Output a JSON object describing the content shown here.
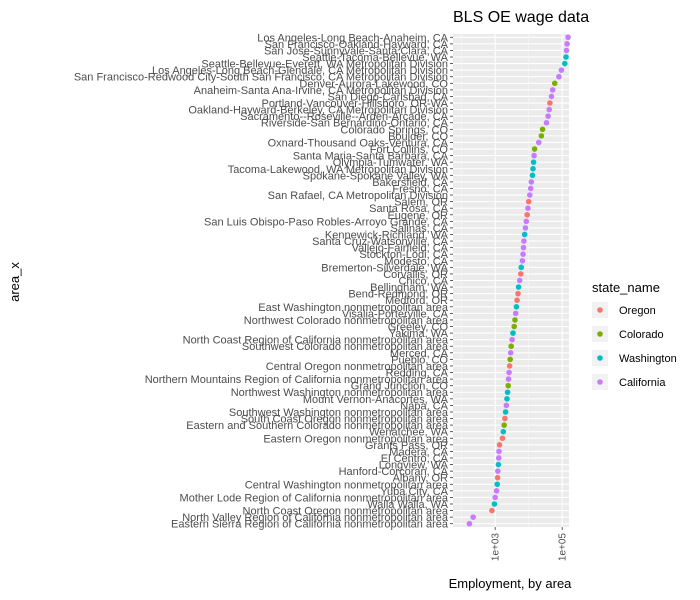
{
  "chart_data": {
    "type": "scatter",
    "title": "BLS OE wage data",
    "xlabel": "Employment, by area",
    "ylabel": "area_x",
    "x_scale": "log10",
    "xlim": [
      55,
      160000
    ],
    "x_ticks": [
      1000,
      100000
    ],
    "x_tick_labels": [
      "1e+03",
      "1e+05"
    ],
    "grid": true,
    "legend": {
      "title": "state_name",
      "position": "right",
      "entries": [
        {
          "name": "Oregon",
          "color": "#F8766D"
        },
        {
          "name": "Colorado",
          "color": "#7CAE00"
        },
        {
          "name": "Washington",
          "color": "#00BFC4"
        },
        {
          "name": "California",
          "color": "#C77CFF"
        }
      ]
    },
    "points": [
      {
        "area": "Los Angeles-Long Beach-Anaheim, CA",
        "state": "California",
        "x": 150000
      },
      {
        "area": "San Francisco-Oakland-Hayward, CA",
        "state": "California",
        "x": 140000
      },
      {
        "area": "San Jose-Sunnyvale-Santa Clara, CA",
        "state": "California",
        "x": 135000
      },
      {
        "area": "Seattle-Tacoma-Bellevue, WA",
        "state": "Washington",
        "x": 130000
      },
      {
        "area": "Seattle-Bellevue-Everett, WA Metropolitan Division",
        "state": "Washington",
        "x": 120000
      },
      {
        "area": "Los Angeles-Long Beach-Glendale, CA Metropolitan Division",
        "state": "California",
        "x": 95000
      },
      {
        "area": "San Francisco-Redwood City-South San Francisco, CA Metropolitan Division",
        "state": "California",
        "x": 80000
      },
      {
        "area": "Denver-Aurora-Lakewood, CO",
        "state": "Colorado",
        "x": 60000
      },
      {
        "area": "Anaheim-Santa Ana-Irvine, CA Metropolitan Division",
        "state": "California",
        "x": 52000
      },
      {
        "area": "San Diego-Carlsbad, CA",
        "state": "California",
        "x": 48000
      },
      {
        "area": "Portland-Vancouver-Hillsboro, OR-WA",
        "state": "Oregon",
        "x": 43000
      },
      {
        "area": "Oakland-Hayward-Berkeley, CA Metropolitan Division",
        "state": "California",
        "x": 41000
      },
      {
        "area": "Sacramento--Roseville--Arden-Arcade, CA",
        "state": "California",
        "x": 38000
      },
      {
        "area": "Riverside-San Bernardino-Ontario, CA",
        "state": "California",
        "x": 34000
      },
      {
        "area": "Colorado Springs, CO",
        "state": "Colorado",
        "x": 26000
      },
      {
        "area": "Boulder, CO",
        "state": "Colorado",
        "x": 24000
      },
      {
        "area": "Oxnard-Thousand Oaks-Ventura, CA",
        "state": "California",
        "x": 20000
      },
      {
        "area": "Fort Collins, CO",
        "state": "Colorado",
        "x": 15000
      },
      {
        "area": "Santa Maria-Santa Barbara, CA",
        "state": "California",
        "x": 14500
      },
      {
        "area": "Olympia-Tumwater, WA",
        "state": "Washington",
        "x": 14000
      },
      {
        "area": "Tacoma-Lakewood, WA Metropolitan Division",
        "state": "Washington",
        "x": 13500
      },
      {
        "area": "Spokane-Spokane Valley, WA",
        "state": "Washington",
        "x": 13000
      },
      {
        "area": "Bakersfield, CA",
        "state": "California",
        "x": 12000
      },
      {
        "area": "Fresno, CA",
        "state": "California",
        "x": 11500
      },
      {
        "area": "San Rafael, CA Metropolitan Division",
        "state": "California",
        "x": 10800
      },
      {
        "area": "Salem, OR",
        "state": "Oregon",
        "x": 10000
      },
      {
        "area": "Santa Rosa, CA",
        "state": "California",
        "x": 9500
      },
      {
        "area": "Eugene, OR",
        "state": "Oregon",
        "x": 9000
      },
      {
        "area": "San Luis Obispo-Paso Robles-Arroyo Grande, CA",
        "state": "California",
        "x": 8500
      },
      {
        "area": "Salinas, CA",
        "state": "California",
        "x": 8000
      },
      {
        "area": "Kennewick-Richland, WA",
        "state": "Washington",
        "x": 7600
      },
      {
        "area": "Santa Cruz-Watsonville, CA",
        "state": "California",
        "x": 7200
      },
      {
        "area": "Vallejo-Fairfield, CA",
        "state": "California",
        "x": 7000
      },
      {
        "area": "Stockton-Lodi, CA",
        "state": "California",
        "x": 6800
      },
      {
        "area": "Modesto, CA",
        "state": "California",
        "x": 6500
      },
      {
        "area": "Bremerton-Silverdale, WA",
        "state": "Washington",
        "x": 6000
      },
      {
        "area": "Corvallis, OR",
        "state": "Oregon",
        "x": 5800
      },
      {
        "area": "Chico, CA",
        "state": "California",
        "x": 5400
      },
      {
        "area": "Bellingham, WA",
        "state": "Washington",
        "x": 5000
      },
      {
        "area": "Bend-Redmond, OR",
        "state": "Oregon",
        "x": 4800
      },
      {
        "area": "Medford, OR",
        "state": "Oregon",
        "x": 4500
      },
      {
        "area": "East Washington nonmetropolitan area",
        "state": "Washington",
        "x": 4300
      },
      {
        "area": "Visalia-Porterville, CA",
        "state": "California",
        "x": 4100
      },
      {
        "area": "Northwest Colorado nonmetropolitan area",
        "state": "Colorado",
        "x": 3900
      },
      {
        "area": "Greeley, CO",
        "state": "Colorado",
        "x": 3700
      },
      {
        "area": "Yakima, WA",
        "state": "Washington",
        "x": 3400
      },
      {
        "area": "North Coast Region of California nonmetropolitan area",
        "state": "California",
        "x": 3200
      },
      {
        "area": "Southwest Colorado nonmetropolitan area",
        "state": "Colorado",
        "x": 3000
      },
      {
        "area": "Merced, CA",
        "state": "California",
        "x": 2900
      },
      {
        "area": "Pueblo, CO",
        "state": "Colorado",
        "x": 2800
      },
      {
        "area": "Central Oregon nonmetropolitan area",
        "state": "Oregon",
        "x": 2700
      },
      {
        "area": "Redding, CA",
        "state": "California",
        "x": 2600
      },
      {
        "area": "Northern Mountains Region of California nonmetropolitan area",
        "state": "California",
        "x": 2500
      },
      {
        "area": "Grand Junction, CO",
        "state": "Colorado",
        "x": 2450
      },
      {
        "area": "Northwest Washington nonmetropolitan area",
        "state": "Washington",
        "x": 2350
      },
      {
        "area": "Mount Vernon-Anacortes, WA",
        "state": "Washington",
        "x": 2250
      },
      {
        "area": "Napa, CA",
        "state": "California",
        "x": 2150
      },
      {
        "area": "Southwest Washington nonmetropolitan area",
        "state": "Washington",
        "x": 2050
      },
      {
        "area": "South Coast Oregon nonmetropolitan area",
        "state": "Oregon",
        "x": 1950
      },
      {
        "area": "Eastern and Southern Colorado nonmetropolitan area",
        "state": "Colorado",
        "x": 1850
      },
      {
        "area": "Wenatchee, WA",
        "state": "Washington",
        "x": 1750
      },
      {
        "area": "Eastern Oregon nonmetropolitan area",
        "state": "Oregon",
        "x": 1650
      },
      {
        "area": "Grants Pass, OR",
        "state": "Oregon",
        "x": 1350
      },
      {
        "area": "Madera, CA",
        "state": "California",
        "x": 1300
      },
      {
        "area": "El Centro, CA",
        "state": "California",
        "x": 1280
      },
      {
        "area": "Longview, WA",
        "state": "Washington",
        "x": 1250
      },
      {
        "area": "Hanford-Corcoran, CA",
        "state": "California",
        "x": 1200
      },
      {
        "area": "Albany, OR",
        "state": "Oregon",
        "x": 1180
      },
      {
        "area": "Central Washington nonmetropolitan area",
        "state": "Washington",
        "x": 1150
      },
      {
        "area": "Yuba City, CA",
        "state": "California",
        "x": 1100
      },
      {
        "area": "Mother Lode Region of California nonmetropolitan area",
        "state": "California",
        "x": 1000
      },
      {
        "area": "Walla Walla, WA",
        "state": "Washington",
        "x": 950
      },
      {
        "area": "North Coast Oregon nonmetropolitan area",
        "state": "Oregon",
        "x": 800
      },
      {
        "area": "North Valley Region of California nonmetropolitan area",
        "state": "California",
        "x": 220
      },
      {
        "area": "Eastern Sierra Region of California nonmetropolitan area",
        "state": "California",
        "x": 170
      }
    ]
  }
}
